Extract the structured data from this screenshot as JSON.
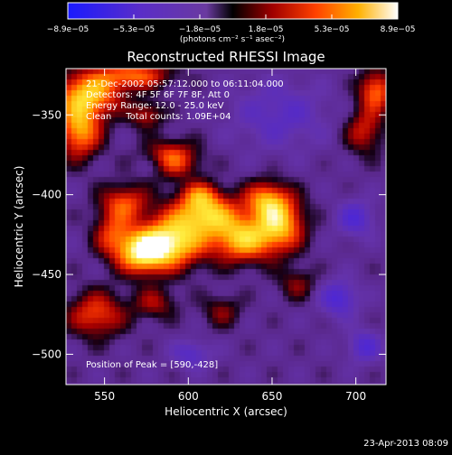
{
  "chart_data": {
    "type": "heatmap",
    "title": "Reconstructed RHESSI Image",
    "xlabel": "Heliocentric X (arcsec)",
    "ylabel": "Heliocentric Y (arcsec)",
    "xlim": [
      527,
      718
    ],
    "ylim": [
      -519,
      -321
    ],
    "x_ticks": [
      550,
      600,
      650,
      700
    ],
    "x_tick_labels": [
      "550",
      "600",
      "650",
      "700"
    ],
    "y_ticks": [
      -350,
      -400,
      -450,
      -500
    ],
    "y_tick_labels": [
      "−350",
      "−400",
      "−450",
      "−500"
    ],
    "colorbar": {
      "range": [
        -8.9e-05,
        8.9e-05
      ],
      "tick_labels": [
        "−8.9e−05",
        "−5.3e−05",
        "−1.8e−05",
        "1.8e−05",
        "5.3e−05",
        "8.9e−05"
      ],
      "units_label": "(photons cm⁻² s⁻¹ asec⁻²)"
    },
    "annotations": [
      "21-Dec-2002 05:57:12.000 to 06:11:04.000",
      "Detectors: 4F 5F 6F 7F 8F, Att 0",
      "Energy Range: 12.0 - 25.0 keV",
      "Clean     Total counts: 1.09E+04"
    ],
    "peak_label": "Position of Peak = [590,-428]",
    "peak": [
      590,
      -428
    ],
    "sources": [
      {
        "x": 589,
        "y": -430,
        "sx": 14,
        "sy": 11,
        "amp": 1.0
      },
      {
        "x": 572,
        "y": -437,
        "sx": 10,
        "sy": 9,
        "amp": 0.8
      },
      {
        "x": 610,
        "y": -412,
        "sx": 14,
        "sy": 9,
        "amp": 0.8
      },
      {
        "x": 632,
        "y": -428,
        "sx": 13,
        "sy": 10,
        "amp": 0.82
      },
      {
        "x": 655,
        "y": -418,
        "sx": 10,
        "sy": 12,
        "amp": 0.8
      },
      {
        "x": 646,
        "y": -403,
        "sx": 9,
        "sy": 8,
        "amp": 0.6
      },
      {
        "x": 562,
        "y": -405,
        "sx": 10,
        "sy": 8,
        "amp": 0.55
      },
      {
        "x": 555,
        "y": -425,
        "sx": 8,
        "sy": 10,
        "amp": 0.5
      },
      {
        "x": 540,
        "y": -337,
        "sx": 14,
        "sy": 10,
        "amp": 0.8
      },
      {
        "x": 535,
        "y": -360,
        "sx": 9,
        "sy": 12,
        "amp": 0.75
      },
      {
        "x": 568,
        "y": -325,
        "sx": 15,
        "sy": 6,
        "amp": 0.6
      },
      {
        "x": 590,
        "y": -378,
        "sx": 11,
        "sy": 8,
        "amp": 0.65
      },
      {
        "x": 575,
        "y": -350,
        "sx": 7,
        "sy": 6,
        "amp": 0.4
      },
      {
        "x": 712,
        "y": -335,
        "sx": 7,
        "sy": 9,
        "amp": 0.65
      },
      {
        "x": 705,
        "y": -360,
        "sx": 8,
        "sy": 10,
        "amp": 0.45
      },
      {
        "x": 545,
        "y": -475,
        "sx": 12,
        "sy": 10,
        "amp": 0.55
      },
      {
        "x": 580,
        "y": -468,
        "sx": 9,
        "sy": 7,
        "amp": 0.35
      },
      {
        "x": 620,
        "y": -473,
        "sx": 8,
        "sy": 7,
        "amp": 0.3
      },
      {
        "x": 665,
        "y": -456,
        "sx": 8,
        "sy": 7,
        "amp": 0.3
      },
      {
        "x": 607,
        "y": -400,
        "sx": 8,
        "sy": 6,
        "amp": 0.45
      },
      {
        "x": 700,
        "y": -415,
        "sx": 8,
        "sy": 8,
        "amp": -0.4
      },
      {
        "x": 655,
        "y": -350,
        "sx": 20,
        "sy": 15,
        "amp": -0.3
      },
      {
        "x": 690,
        "y": -465,
        "sx": 8,
        "sy": 8,
        "amp": -0.45
      },
      {
        "x": 705,
        "y": -495,
        "sx": 7,
        "sy": 7,
        "amp": -0.4
      },
      {
        "x": 602,
        "y": -500,
        "sx": 8,
        "sy": 6,
        "amp": -0.35
      },
      {
        "x": 580,
        "y": -382,
        "sx": 7,
        "sy": 5,
        "amp": -0.2
      }
    ],
    "grid": false,
    "colormap": "rainbow-to-hot (blue-purple-red-orange-yellow-white)"
  },
  "footer": {
    "date_stamp": "23-Apr-2013 08:09"
  }
}
